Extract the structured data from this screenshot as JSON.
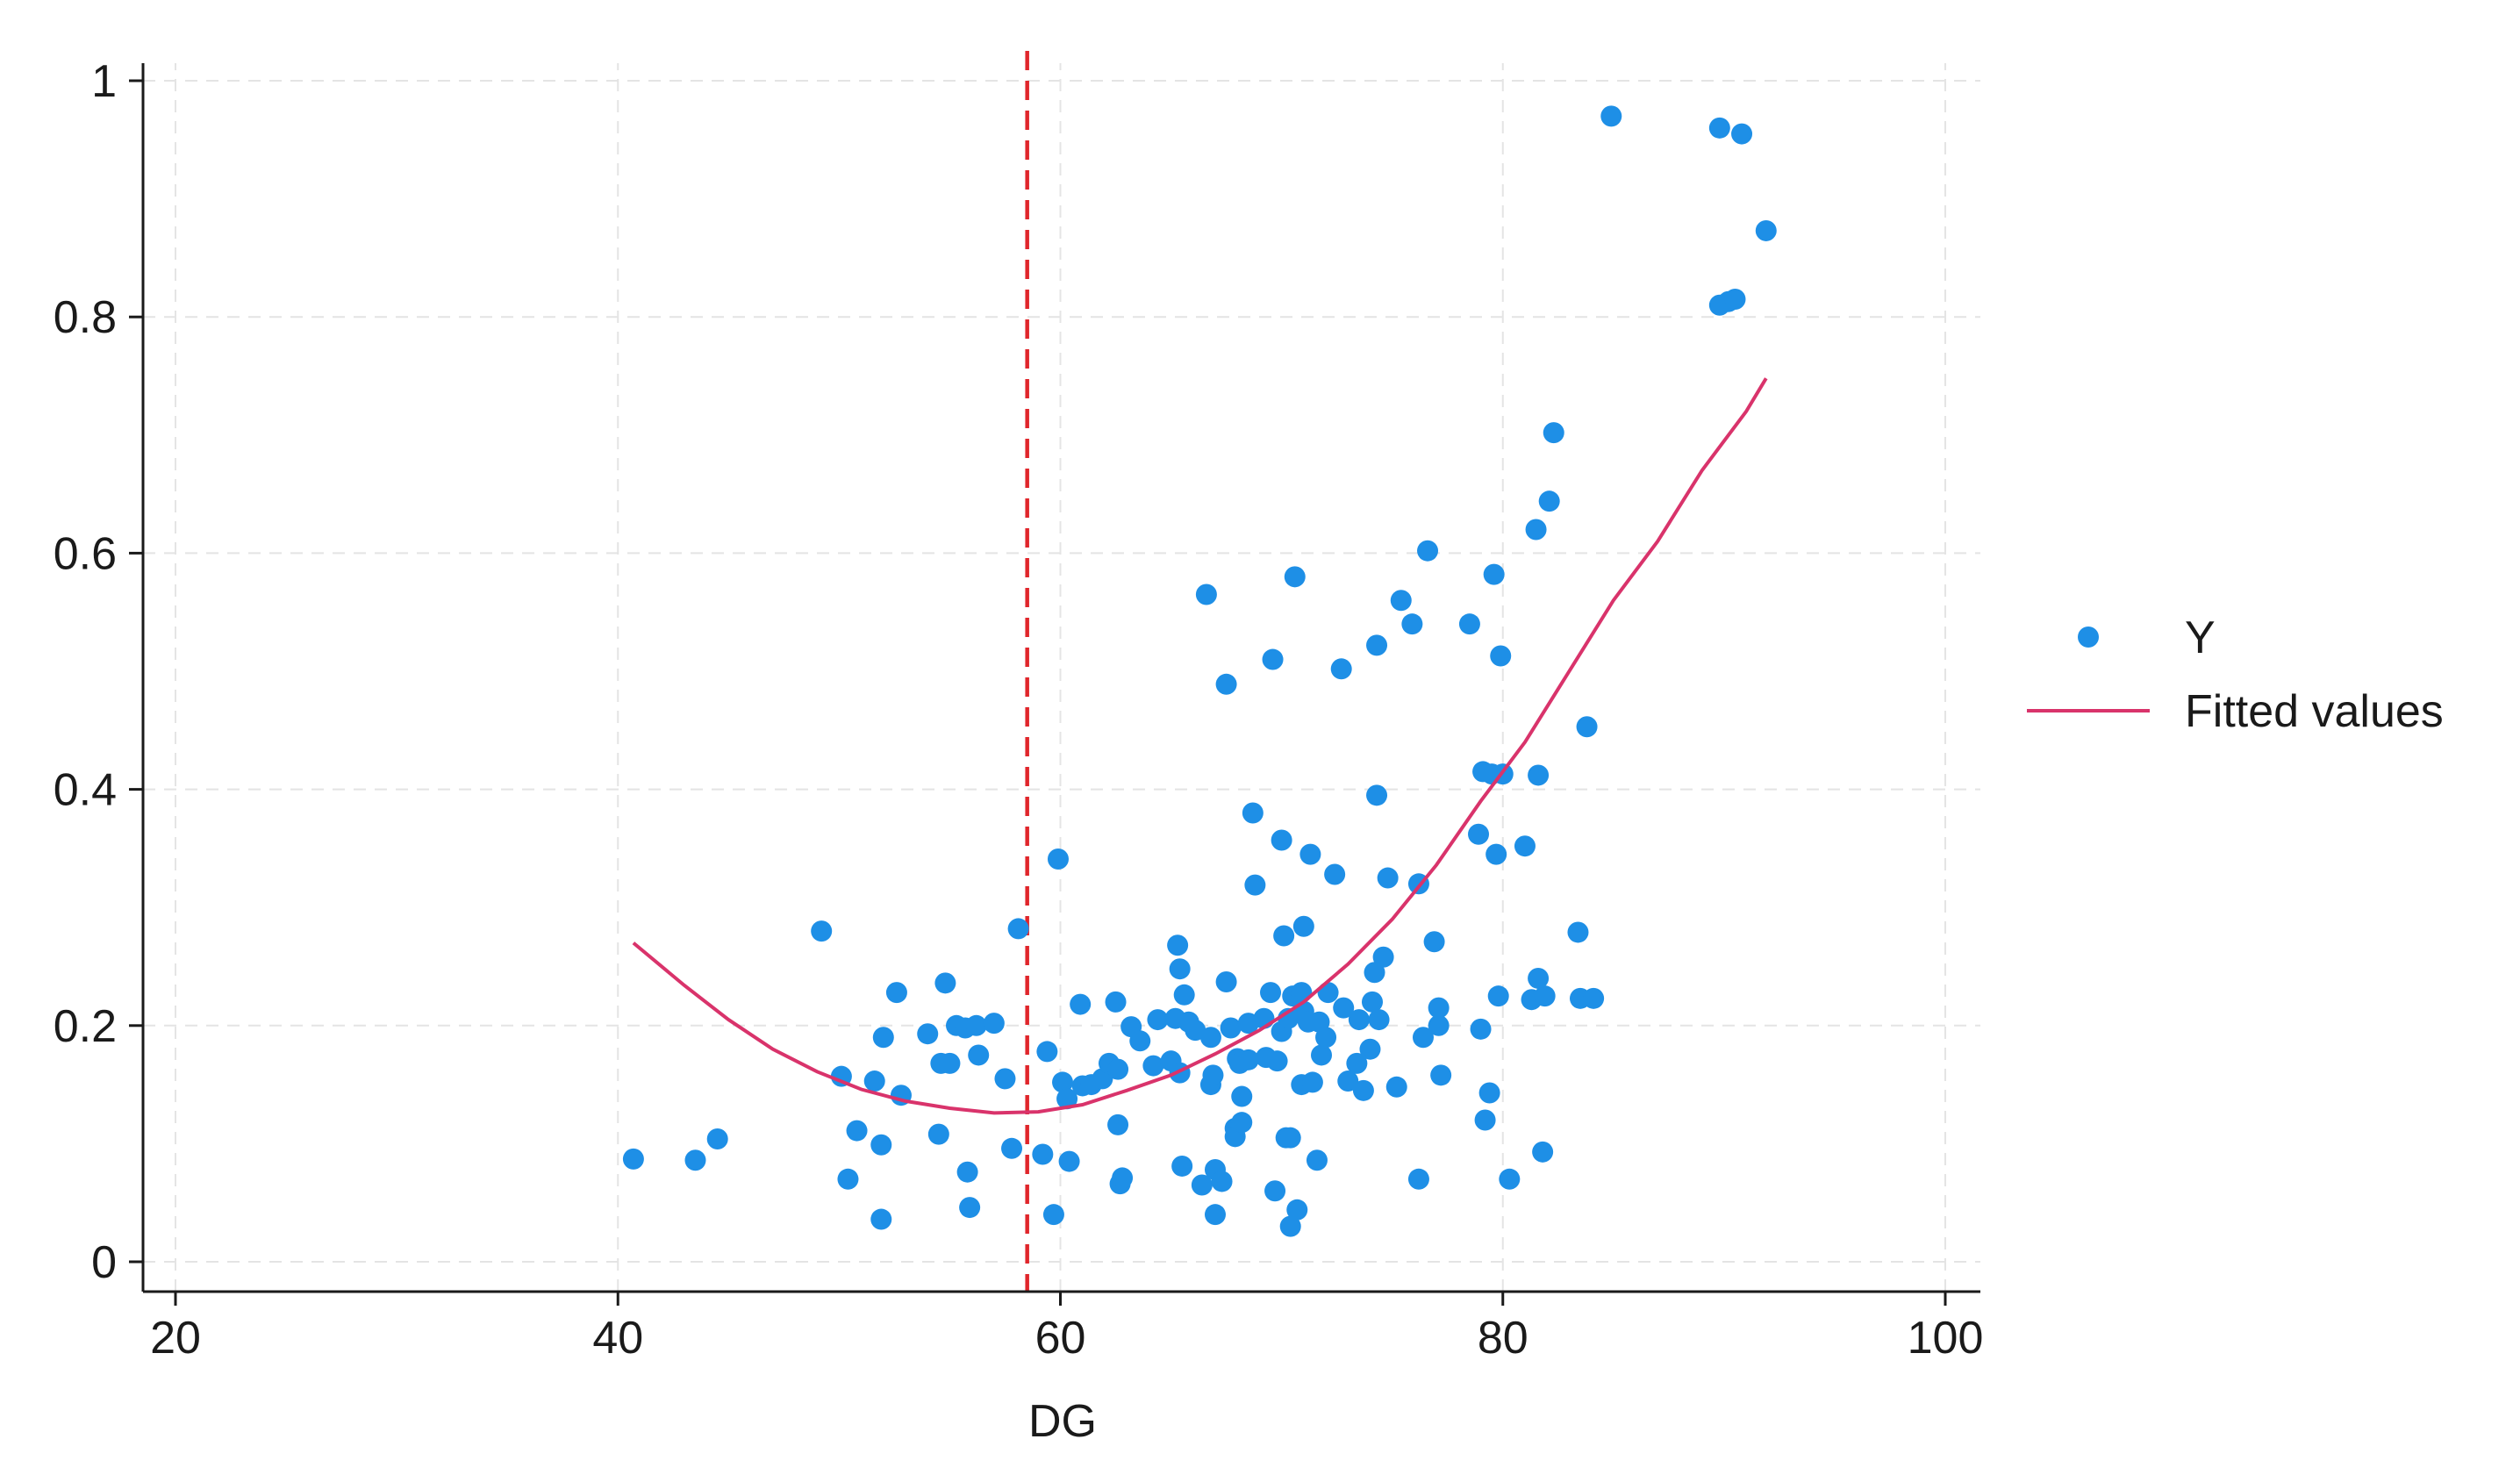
{
  "chart_data": {
    "type": "scatter",
    "xlabel": "DG",
    "ylabel": "",
    "xlim": [
      20,
      100
    ],
    "ylim": [
      0,
      1
    ],
    "xticks": [
      "20",
      "40",
      "60",
      "80",
      "100"
    ],
    "yticks": [
      "0",
      "0.2",
      "0.4",
      "0.6",
      "0.8",
      "1"
    ],
    "grid": true,
    "legend_position": "right",
    "reference_line": {
      "x": 58.5,
      "color": "#e0262b",
      "style": "dashed"
    },
    "colors": {
      "points": "#1e8fe6",
      "fit": "#d9336b"
    },
    "series": [
      {
        "name": "Y",
        "kind": "points",
        "points": [
          [
            40.7,
            0.087
          ],
          [
            43.5,
            0.086
          ],
          [
            44.5,
            0.104
          ],
          [
            49.2,
            0.28
          ],
          [
            50.1,
            0.157
          ],
          [
            50.4,
            0.07
          ],
          [
            50.8,
            0.111
          ],
          [
            51.6,
            0.153
          ],
          [
            51.9,
            0.036
          ],
          [
            51.9,
            0.099
          ],
          [
            52.0,
            0.19
          ],
          [
            52.6,
            0.228
          ],
          [
            52.8,
            0.141
          ],
          [
            54.0,
            0.193
          ],
          [
            54.5,
            0.108
          ],
          [
            54.6,
            0.168
          ],
          [
            54.8,
            0.236
          ],
          [
            55.0,
            0.168
          ],
          [
            55.3,
            0.2
          ],
          [
            55.7,
            0.198
          ],
          [
            55.8,
            0.076
          ],
          [
            55.9,
            0.046
          ],
          [
            56.2,
            0.2
          ],
          [
            56.3,
            0.175
          ],
          [
            57.0,
            0.202
          ],
          [
            57.5,
            0.155
          ],
          [
            57.8,
            0.096
          ],
          [
            58.1,
            0.282
          ],
          [
            59.2,
            0.091
          ],
          [
            59.4,
            0.178
          ],
          [
            59.7,
            0.04
          ],
          [
            59.9,
            0.341
          ],
          [
            60.1,
            0.152
          ],
          [
            60.3,
            0.138
          ],
          [
            60.4,
            0.085
          ],
          [
            60.9,
            0.218
          ],
          [
            61.0,
            0.149
          ],
          [
            61.4,
            0.15
          ],
          [
            61.9,
            0.155
          ],
          [
            62.2,
            0.168
          ],
          [
            62.5,
            0.22
          ],
          [
            62.6,
            0.163
          ],
          [
            62.6,
            0.116
          ],
          [
            62.7,
            0.066
          ],
          [
            62.8,
            0.071
          ],
          [
            63.2,
            0.199
          ],
          [
            63.6,
            0.187
          ],
          [
            64.2,
            0.166
          ],
          [
            64.4,
            0.205
          ],
          [
            65.0,
            0.17
          ],
          [
            65.2,
            0.206
          ],
          [
            65.3,
            0.268
          ],
          [
            65.4,
            0.248
          ],
          [
            65.4,
            0.16
          ],
          [
            65.5,
            0.081
          ],
          [
            65.6,
            0.226
          ],
          [
            65.8,
            0.203
          ],
          [
            66.1,
            0.196
          ],
          [
            66.4,
            0.065
          ],
          [
            66.6,
            0.565
          ],
          [
            66.8,
            0.15
          ],
          [
            66.8,
            0.19
          ],
          [
            66.9,
            0.158
          ],
          [
            67.0,
            0.078
          ],
          [
            67.0,
            0.04
          ],
          [
            67.3,
            0.068
          ],
          [
            67.5,
            0.237
          ],
          [
            67.5,
            0.489
          ],
          [
            67.7,
            0.198
          ],
          [
            67.9,
            0.113
          ],
          [
            67.9,
            0.106
          ],
          [
            68.0,
            0.172
          ],
          [
            68.1,
            0.168
          ],
          [
            68.2,
            0.118
          ],
          [
            68.2,
            0.14
          ],
          [
            68.5,
            0.202
          ],
          [
            68.5,
            0.171
          ],
          [
            68.7,
            0.38
          ],
          [
            68.8,
            0.319
          ],
          [
            69.2,
            0.206
          ],
          [
            69.3,
            0.173
          ],
          [
            69.5,
            0.228
          ],
          [
            69.6,
            0.51
          ],
          [
            69.7,
            0.06
          ],
          [
            69.8,
            0.17
          ],
          [
            70.0,
            0.357
          ],
          [
            70.0,
            0.195
          ],
          [
            70.1,
            0.276
          ],
          [
            70.2,
            0.105
          ],
          [
            70.3,
            0.206
          ],
          [
            70.4,
            0.105
          ],
          [
            70.4,
            0.03
          ],
          [
            70.5,
            0.225
          ],
          [
            70.6,
            0.58
          ],
          [
            70.7,
            0.044
          ],
          [
            70.9,
            0.228
          ],
          [
            70.9,
            0.15
          ],
          [
            71.0,
            0.284
          ],
          [
            71.0,
            0.212
          ],
          [
            71.2,
            0.203
          ],
          [
            71.3,
            0.345
          ],
          [
            71.4,
            0.152
          ],
          [
            71.6,
            0.086
          ],
          [
            71.7,
            0.203
          ],
          [
            71.8,
            0.175
          ],
          [
            72.0,
            0.19
          ],
          [
            72.1,
            0.228
          ],
          [
            72.4,
            0.328
          ],
          [
            72.7,
            0.502
          ],
          [
            72.8,
            0.215
          ],
          [
            73.0,
            0.153
          ],
          [
            73.4,
            0.168
          ],
          [
            73.5,
            0.205
          ],
          [
            73.7,
            0.145
          ],
          [
            74.0,
            0.18
          ],
          [
            74.1,
            0.22
          ],
          [
            74.2,
            0.245
          ],
          [
            74.3,
            0.522
          ],
          [
            74.3,
            0.395
          ],
          [
            74.4,
            0.205
          ],
          [
            74.6,
            0.258
          ],
          [
            74.8,
            0.325
          ],
          [
            75.2,
            0.148
          ],
          [
            75.4,
            0.56
          ],
          [
            75.9,
            0.54
          ],
          [
            76.2,
            0.07
          ],
          [
            76.2,
            0.32
          ],
          [
            76.4,
            0.19
          ],
          [
            76.6,
            0.602
          ],
          [
            76.9,
            0.271
          ],
          [
            77.1,
            0.2
          ],
          [
            77.1,
            0.215
          ],
          [
            77.2,
            0.158
          ],
          [
            78.5,
            0.54
          ],
          [
            78.9,
            0.362
          ],
          [
            79.0,
            0.197
          ],
          [
            79.1,
            0.415
          ],
          [
            79.2,
            0.12
          ],
          [
            79.4,
            0.143
          ],
          [
            79.5,
            0.413
          ],
          [
            79.6,
            0.582
          ],
          [
            79.7,
            0.345
          ],
          [
            79.8,
            0.225
          ],
          [
            79.9,
            0.513
          ],
          [
            80.0,
            0.413
          ],
          [
            80.3,
            0.07
          ],
          [
            81.0,
            0.352
          ],
          [
            81.3,
            0.222
          ],
          [
            81.5,
            0.62
          ],
          [
            81.6,
            0.412
          ],
          [
            81.6,
            0.24
          ],
          [
            81.8,
            0.093
          ],
          [
            81.9,
            0.225
          ],
          [
            82.1,
            0.644
          ],
          [
            82.3,
            0.702
          ],
          [
            83.4,
            0.279
          ],
          [
            83.5,
            0.223
          ],
          [
            83.8,
            0.453
          ],
          [
            84.1,
            0.223
          ],
          [
            84.9,
            0.97
          ],
          [
            89.8,
            0.81
          ],
          [
            89.8,
            0.96
          ],
          [
            90.2,
            0.813
          ],
          [
            90.5,
            0.815
          ],
          [
            90.8,
            0.955
          ],
          [
            91.9,
            0.873
          ]
        ]
      },
      {
        "name": "Fitted values",
        "kind": "line",
        "points": [
          [
            40.7,
            0.27
          ],
          [
            43.0,
            0.234
          ],
          [
            45.0,
            0.205
          ],
          [
            47.0,
            0.18
          ],
          [
            49.0,
            0.161
          ],
          [
            51.0,
            0.146
          ],
          [
            53.0,
            0.136
          ],
          [
            55.0,
            0.13
          ],
          [
            57.0,
            0.126
          ],
          [
            59.0,
            0.127
          ],
          [
            61.0,
            0.133
          ],
          [
            63.0,
            0.145
          ],
          [
            65.0,
            0.158
          ],
          [
            67.0,
            0.176
          ],
          [
            69.0,
            0.196
          ],
          [
            71.0,
            0.22
          ],
          [
            73.0,
            0.252
          ],
          [
            75.0,
            0.29
          ],
          [
            77.0,
            0.336
          ],
          [
            79.0,
            0.39
          ],
          [
            81.0,
            0.44
          ],
          [
            83.0,
            0.5
          ],
          [
            85.0,
            0.56
          ],
          [
            87.0,
            0.61
          ],
          [
            89.0,
            0.67
          ],
          [
            91.0,
            0.72
          ],
          [
            91.9,
            0.748
          ]
        ]
      }
    ]
  }
}
